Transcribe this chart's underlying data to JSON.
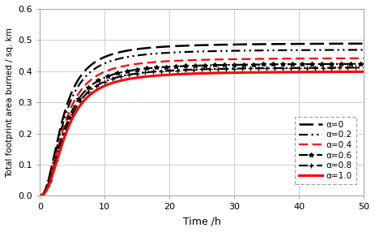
{
  "title": "",
  "xlabel": "Time /h",
  "ylabel": "Total footprint area burned / sq. km",
  "xlim": [
    0,
    50
  ],
  "ylim": [
    0,
    0.6
  ],
  "xticks": [
    0,
    10,
    20,
    30,
    40,
    50
  ],
  "yticks": [
    0,
    0.1,
    0.2,
    0.3,
    0.4,
    0.5,
    0.6
  ],
  "series": [
    {
      "asymptote": 0.49,
      "b": 3.5,
      "n": 2.2,
      "color": "#000000",
      "label": "α=0"
    },
    {
      "asymptote": 0.47,
      "b": 3.6,
      "n": 2.2,
      "color": "#000000",
      "label": "α=0.2"
    },
    {
      "asymptote": 0.443,
      "b": 3.7,
      "n": 2.2,
      "color": "#ff0000",
      "label": "α=0.4"
    },
    {
      "asymptote": 0.425,
      "b": 3.8,
      "n": 2.2,
      "color": "#000000",
      "label": "α=0.6"
    },
    {
      "asymptote": 0.413,
      "b": 3.9,
      "n": 2.2,
      "color": "#000000",
      "label": "α=0.8"
    },
    {
      "asymptote": 0.4,
      "b": 4.0,
      "n": 2.2,
      "color": "#ff0000",
      "label": "α=1.0"
    }
  ],
  "bg_color": "#ffffff",
  "grid_color": "#c8c8c8"
}
